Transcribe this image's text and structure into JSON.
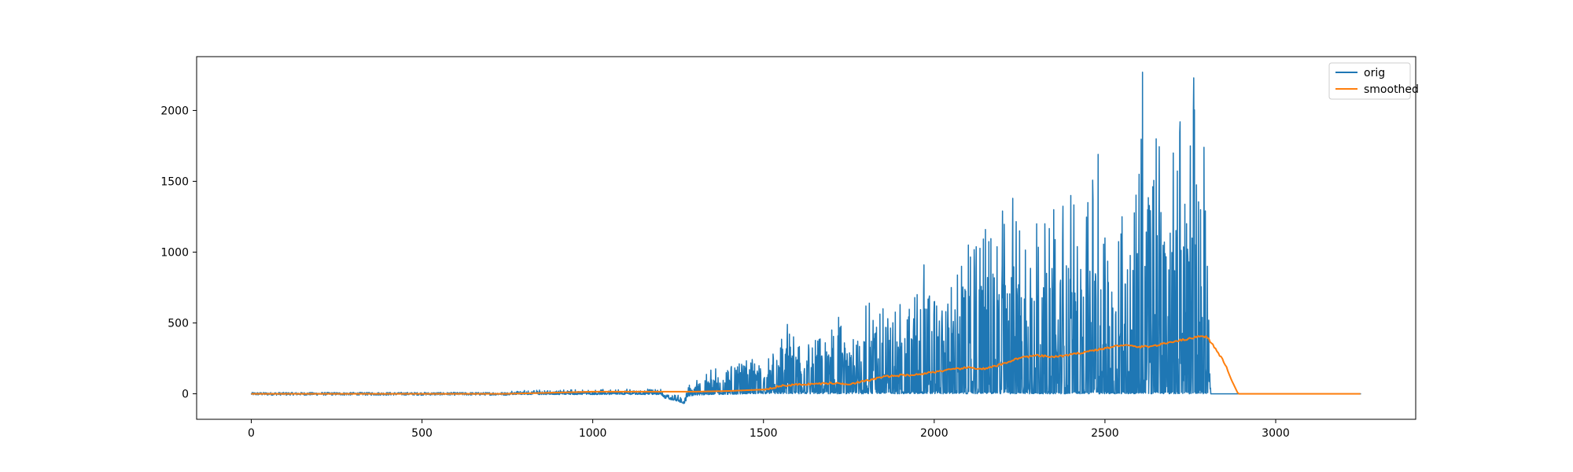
{
  "chart_data": {
    "type": "line",
    "title": "",
    "xlabel": "",
    "ylabel": "",
    "xlim": [
      -160,
      3410
    ],
    "ylim": [
      -180,
      2380
    ],
    "x_ticks": [
      0,
      500,
      1000,
      1500,
      2000,
      2500,
      3000
    ],
    "y_ticks": [
      0,
      500,
      1000,
      1500,
      2000
    ],
    "grid": false,
    "legend_position": "top-right",
    "series": [
      {
        "name": "orig",
        "color": "#1f77b4",
        "style": "dense-noisy",
        "x": [
          0,
          750,
          760,
          1200,
          1210,
          1270,
          1280,
          1300,
          1350,
          1400,
          1450,
          1500,
          1550,
          1570,
          1600,
          1650,
          1700,
          1720,
          1750,
          1800,
          1810,
          1850,
          1900,
          1950,
          1970,
          2000,
          2050,
          2100,
          2150,
          2200,
          2230,
          2250,
          2300,
          2350,
          2400,
          2450,
          2480,
          2500,
          2550,
          2600,
          2610,
          2650,
          2700,
          2720,
          2750,
          2760,
          2780,
          2790,
          2800,
          2810,
          3250
        ],
        "envelope_high": [
          10,
          10,
          30,
          40,
          40,
          60,
          80,
          100,
          180,
          240,
          250,
          260,
          380,
          490,
          350,
          400,
          450,
          540,
          300,
          620,
          640,
          600,
          630,
          700,
          910,
          650,
          750,
          1050,
          1160,
          1290,
          1380,
          1150,
          1200,
          1300,
          1400,
          1350,
          1690,
          1100,
          1250,
          1550,
          2270,
          1800,
          1700,
          1920,
          1750,
          2230,
          1300,
          1740,
          900,
          0,
          0
        ],
        "envelope_low": [
          -10,
          -10,
          -5,
          -5,
          -30,
          -70,
          -20,
          -10,
          -5,
          -5,
          0,
          0,
          0,
          0,
          0,
          0,
          0,
          0,
          0,
          0,
          0,
          0,
          0,
          0,
          0,
          0,
          0,
          0,
          0,
          0,
          0,
          0,
          0,
          0,
          0,
          0,
          0,
          0,
          0,
          0,
          0,
          0,
          0,
          0,
          0,
          0,
          0,
          0,
          0,
          0,
          0
        ]
      },
      {
        "name": "smoothed",
        "color": "#ff7f0e",
        "x": [
          0,
          500,
          750,
          1000,
          1200,
          1300,
          1400,
          1500,
          1550,
          1600,
          1650,
          1700,
          1750,
          1800,
          1850,
          1900,
          1950,
          2000,
          2050,
          2100,
          2150,
          2200,
          2250,
          2300,
          2350,
          2400,
          2450,
          2500,
          2550,
          2600,
          2650,
          2700,
          2750,
          2780,
          2800,
          2820,
          2850,
          2870,
          2890,
          3000,
          3250
        ],
        "values": [
          0,
          0,
          0,
          15,
          15,
          15,
          20,
          30,
          55,
          65,
          70,
          75,
          70,
          90,
          120,
          130,
          135,
          155,
          170,
          185,
          175,
          210,
          255,
          270,
          260,
          275,
          300,
          320,
          345,
          330,
          340,
          370,
          390,
          410,
          400,
          330,
          220,
          100,
          0,
          0,
          0
        ]
      }
    ]
  }
}
